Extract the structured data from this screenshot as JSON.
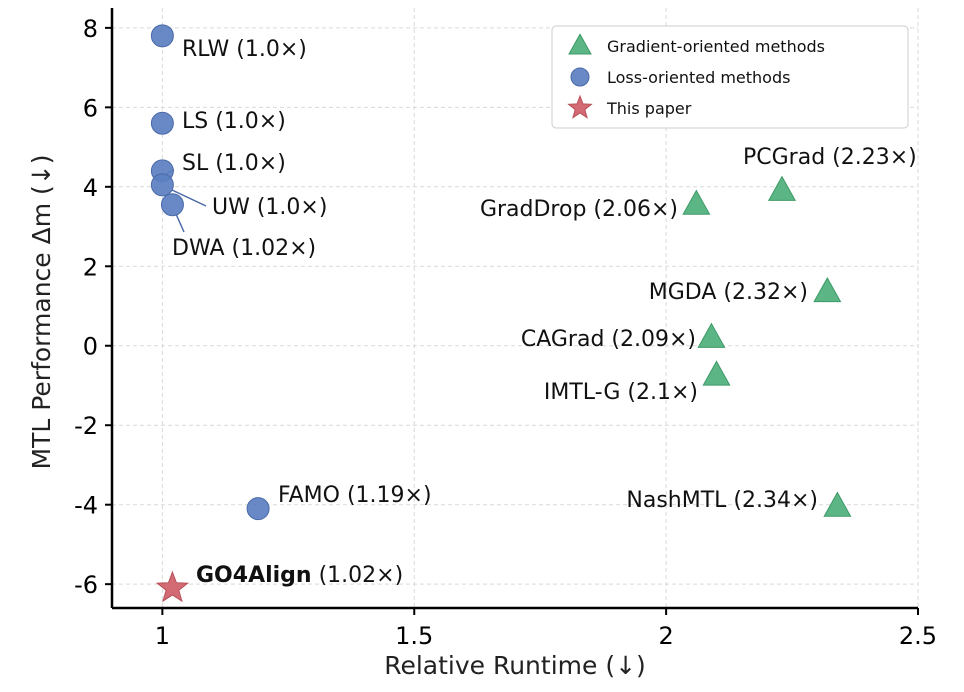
{
  "chart_data": {
    "type": "scatter",
    "title": "",
    "xlabel": "Relative Runtime (↓)",
    "ylabel": "MTL Performance Δm (↓)",
    "xlim": [
      0.9,
      2.5
    ],
    "ylim": [
      -6.6,
      8.5
    ],
    "xticks": [
      "1",
      "1.5",
      "2",
      "2.5"
    ],
    "yticks": [
      "8",
      "6",
      "4",
      "2",
      "0",
      "-2",
      "-4",
      "-6"
    ],
    "grid": true,
    "legend_position": "top-right",
    "series": [
      {
        "name": "Gradient-oriented methods",
        "marker": "triangle",
        "color": "#4daf7a",
        "points": [
          {
            "label": "PCGrad (2.23×)",
            "x": 2.23,
            "y": 3.9
          },
          {
            "label": "GradDrop (2.06×)",
            "x": 2.06,
            "y": 3.55
          },
          {
            "label": "MGDA (2.32×)",
            "x": 2.32,
            "y": 1.35
          },
          {
            "label": "CAGrad (2.09×)",
            "x": 2.09,
            "y": 0.2
          },
          {
            "label": "IMTL-G (2.1×)",
            "x": 2.1,
            "y": -0.75
          },
          {
            "label": "NashMTL (2.34×)",
            "x": 2.34,
            "y": -4.05
          }
        ]
      },
      {
        "name": "Loss-oriented methods",
        "marker": "circle",
        "color": "#5b7fc0",
        "points": [
          {
            "label": "RLW (1.0×)",
            "x": 1.0,
            "y": 7.8
          },
          {
            "label": "LS (1.0×)",
            "x": 1.0,
            "y": 5.6
          },
          {
            "label": "SL (1.0×)",
            "x": 1.0,
            "y": 4.4
          },
          {
            "label": "UW (1.0×)",
            "x": 1.0,
            "y": 4.05
          },
          {
            "label": "DWA (1.02×)",
            "x": 1.02,
            "y": 3.55
          },
          {
            "label": "FAMO (1.19×)",
            "x": 1.19,
            "y": -4.1
          }
        ]
      },
      {
        "name": "This paper",
        "marker": "star",
        "color": "#d0636d",
        "points": [
          {
            "label": "GO4Align (1.02×)",
            "label_bold": "GO4Align",
            "label_rest": " (1.02×)",
            "x": 1.02,
            "y": -6.1
          }
        ]
      }
    ]
  }
}
